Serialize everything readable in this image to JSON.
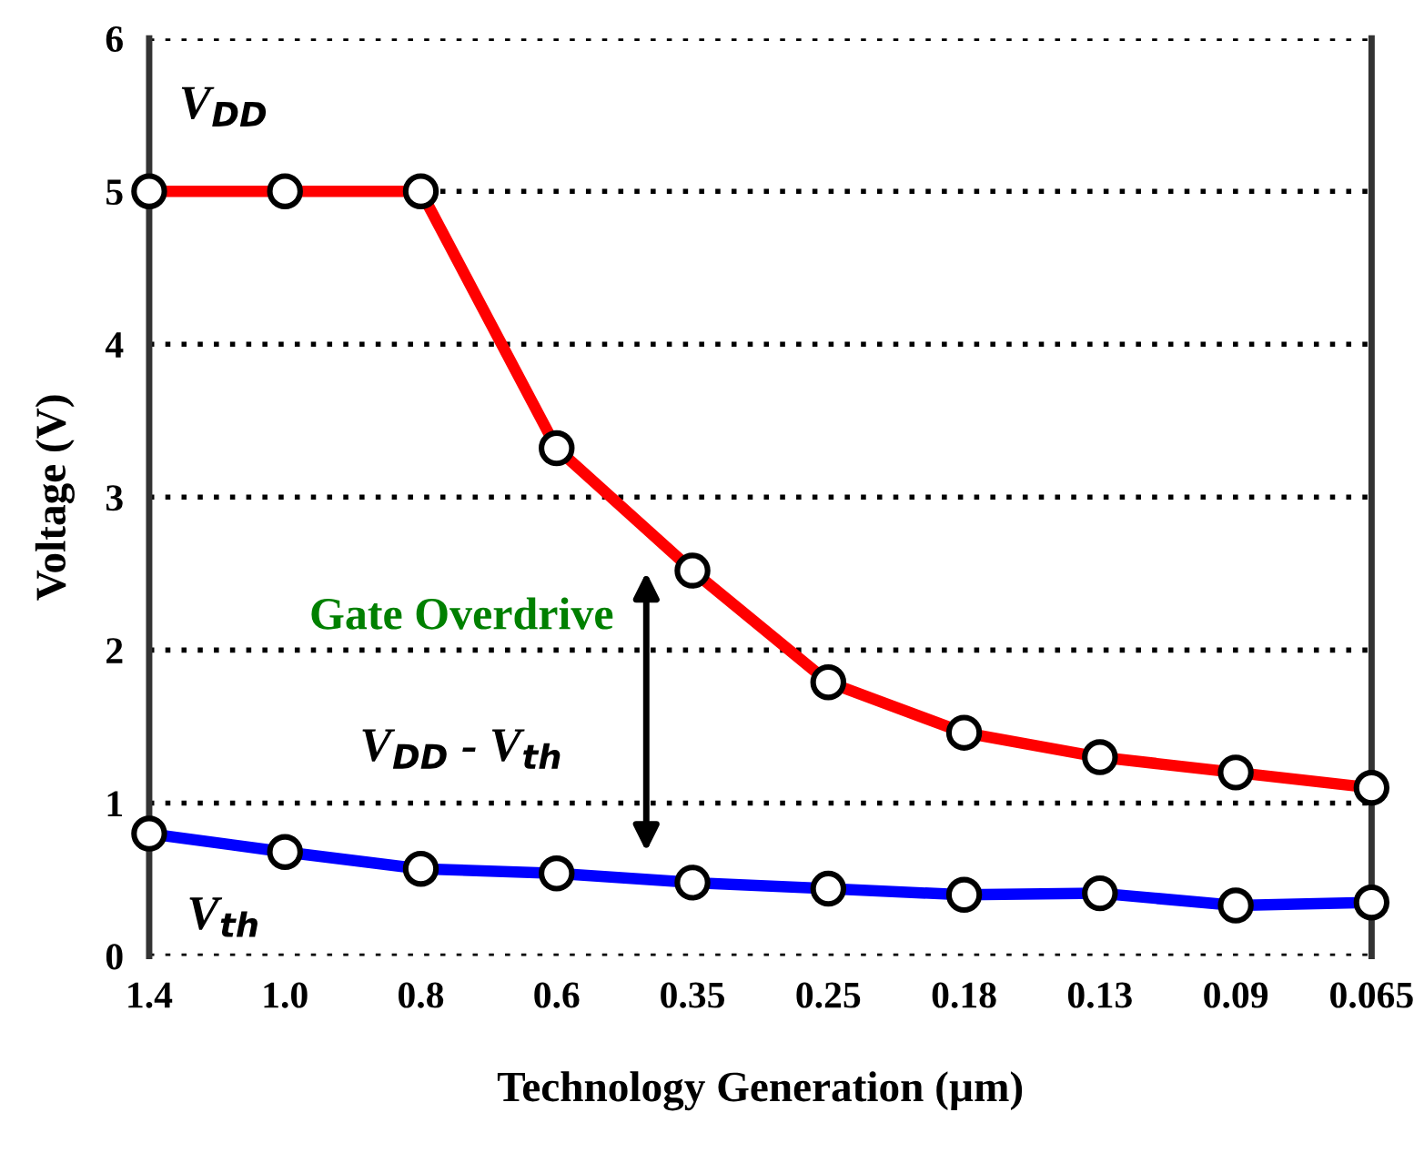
{
  "chart_data": {
    "type": "line",
    "xlabel": "Technology Generation (µm)",
    "ylabel": "Voltage (V)",
    "categories": [
      "1.4",
      "1.0",
      "0.8",
      "0.6",
      "0.35",
      "0.25",
      "0.18",
      "0.13",
      "0.09",
      "0.065"
    ],
    "series": [
      {
        "name": "V$_{DD}$",
        "color": "#ff0000",
        "values": [
          5.0,
          5.0,
          5.0,
          3.32,
          2.52,
          1.79,
          1.46,
          1.3,
          1.2,
          1.1
        ]
      },
      {
        "name": "V$_{th}$",
        "color": "#0000ff",
        "values": [
          0.8,
          0.68,
          0.57,
          0.54,
          0.48,
          0.44,
          0.4,
          0.41,
          0.33,
          0.35
        ]
      }
    ],
    "annotations": [
      "Gate Overdrive",
      "V$_{DD}$ - V$_{th}$"
    ],
    "ylim": [
      0,
      6
    ],
    "yticks": [
      0,
      1,
      2,
      3,
      4,
      5,
      6
    ],
    "grid": "y",
    "marker": "circle",
    "line_style": "solid",
    "legend": false
  }
}
